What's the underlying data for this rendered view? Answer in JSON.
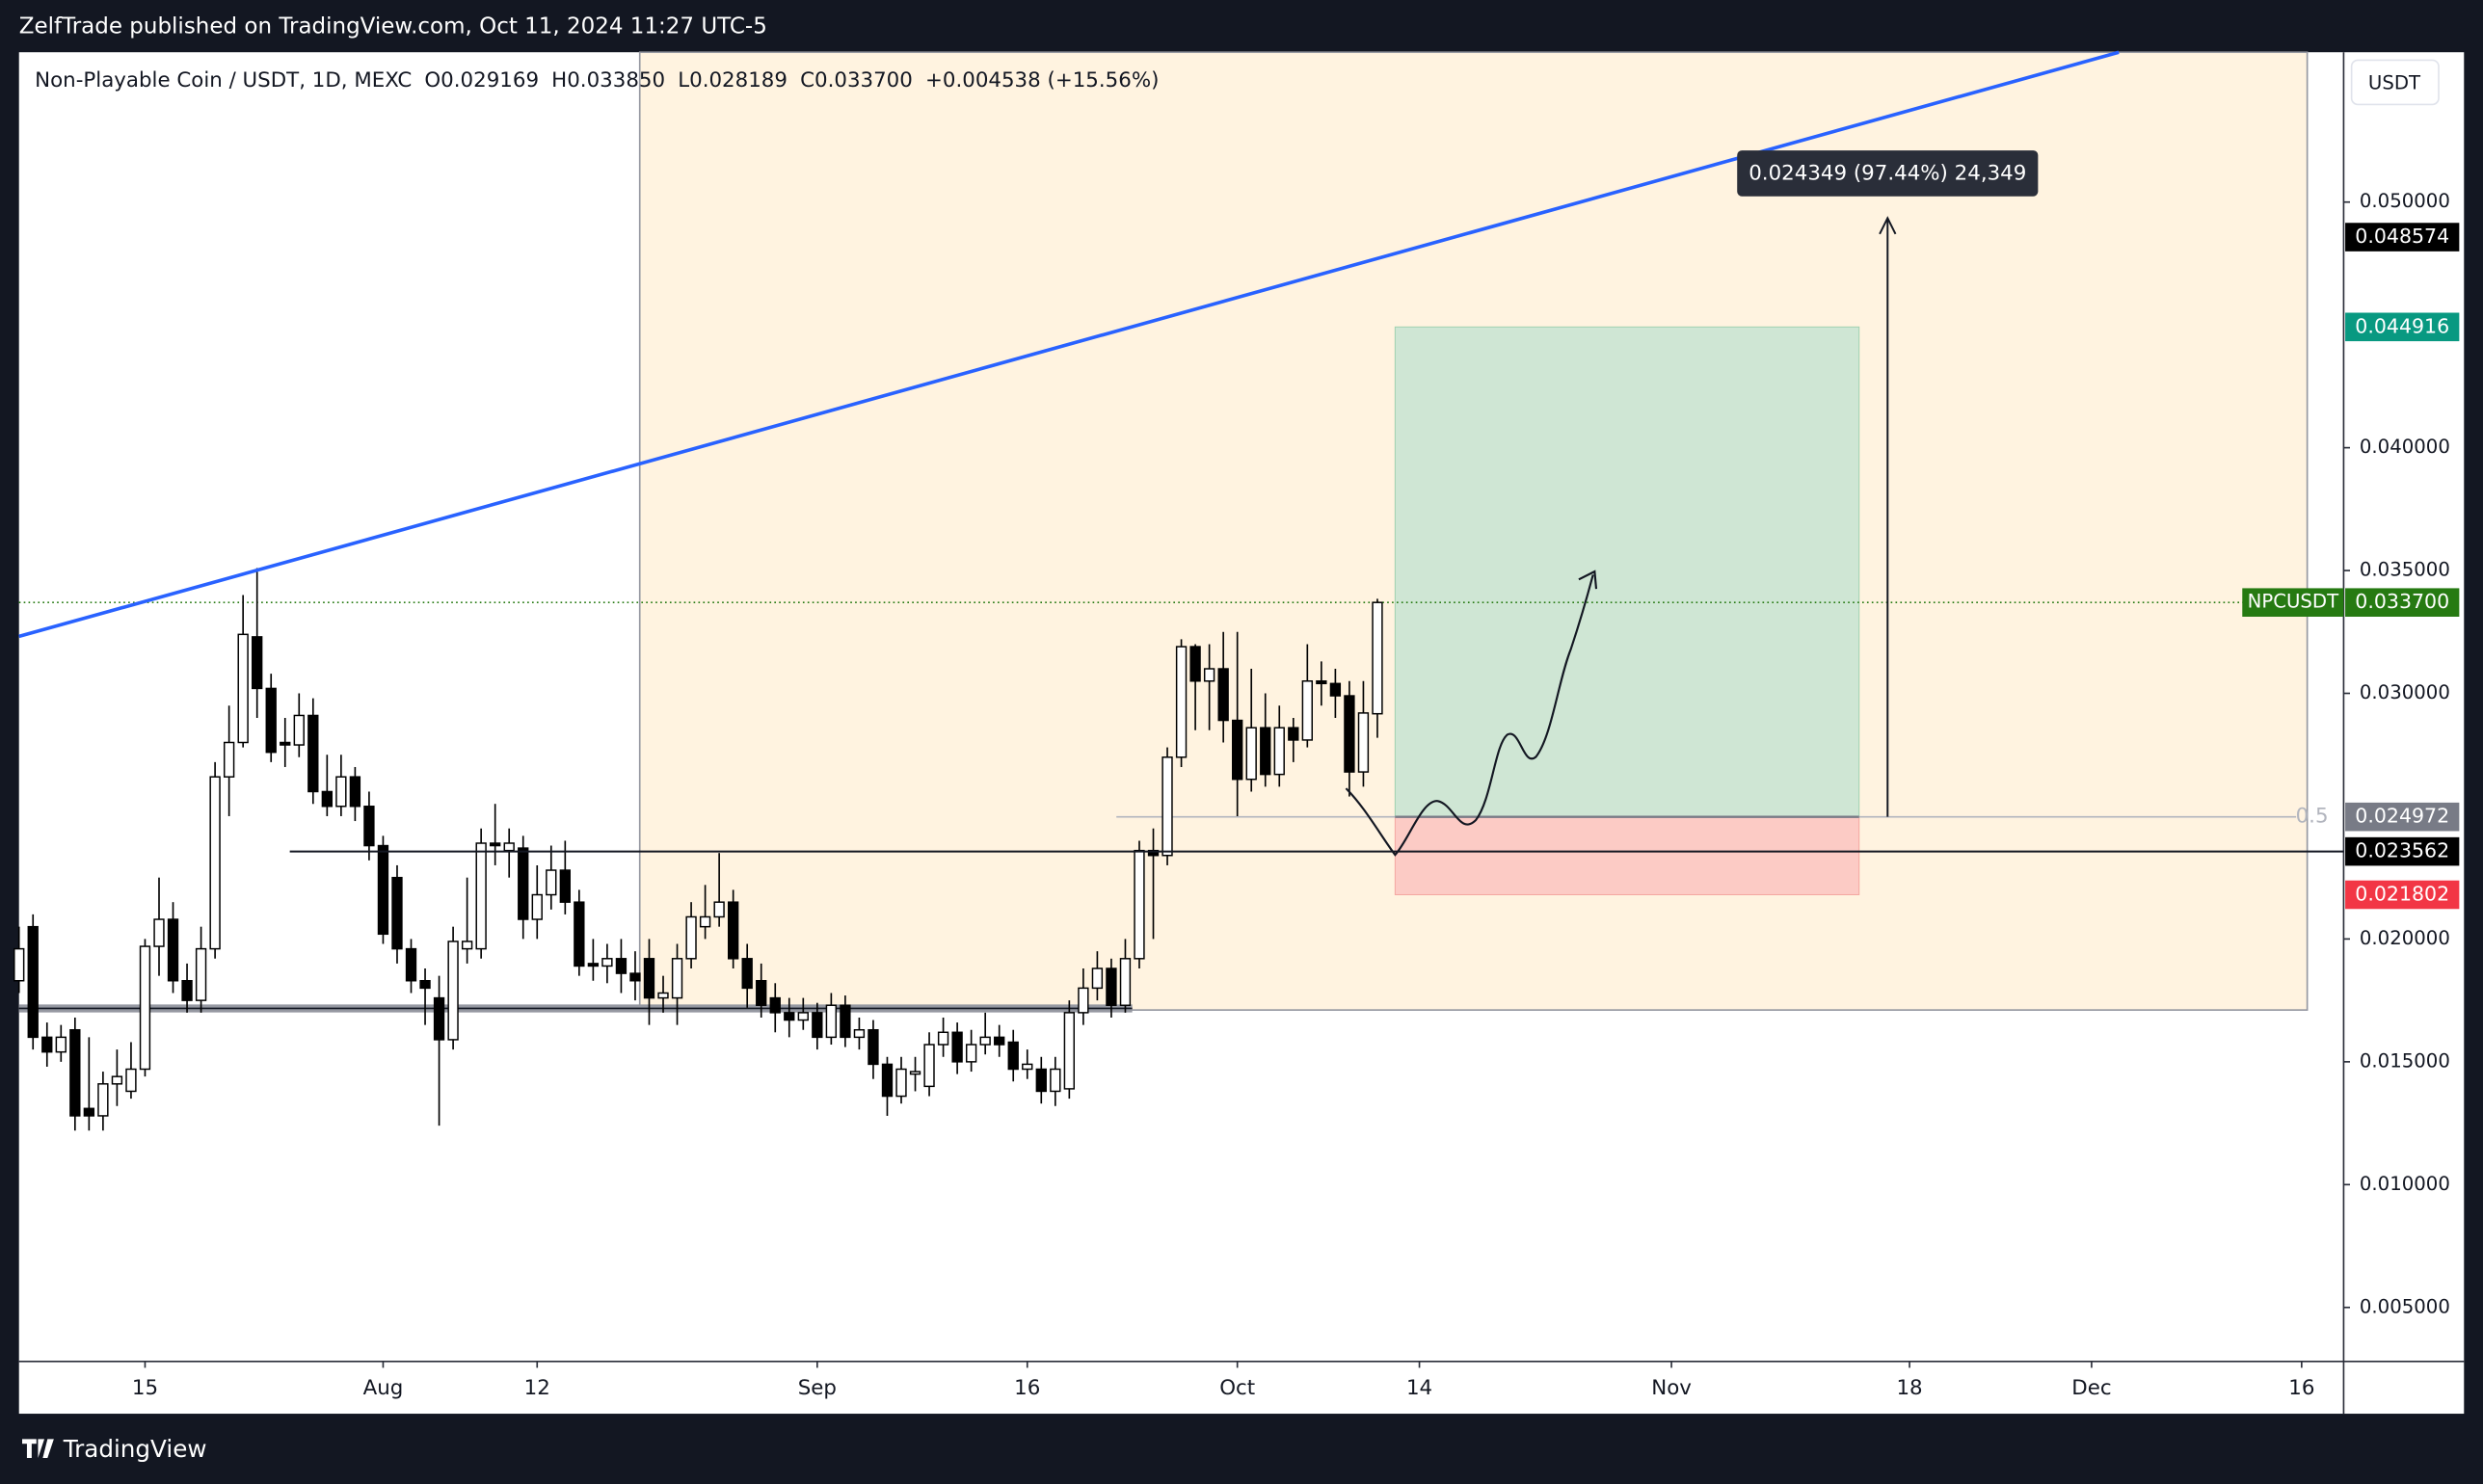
{
  "header": {
    "publisher_line": "ZelfTrade published on TradingView.com, Oct 11, 2024 11:27 UTC-5"
  },
  "chart_data": {
    "type": "candlestick",
    "legend": {
      "symbol": "Non-Playable Coin / USDT, 1D, MEXC",
      "open": "O0.029169",
      "high": "H0.033850",
      "low": "L0.028189",
      "close": "C0.033700",
      "change": "+0.004538 (+15.56%)"
    },
    "currency_button": "USDT",
    "x": [
      "2024-07-06",
      "2024-07-07",
      "2024-07-08",
      "2024-07-09",
      "2024-07-10",
      "2024-07-11",
      "2024-07-12",
      "2024-07-13",
      "2024-07-14",
      "2024-07-15",
      "2024-07-16",
      "2024-07-17",
      "2024-07-18",
      "2024-07-19",
      "2024-07-20",
      "2024-07-21",
      "2024-07-22",
      "2024-07-23",
      "2024-07-24",
      "2024-07-25",
      "2024-07-26",
      "2024-07-27",
      "2024-07-28",
      "2024-07-29",
      "2024-07-30",
      "2024-07-31",
      "2024-08-01",
      "2024-08-02",
      "2024-08-03",
      "2024-08-04",
      "2024-08-05",
      "2024-08-06",
      "2024-08-07",
      "2024-08-08",
      "2024-08-09",
      "2024-08-10",
      "2024-08-11",
      "2024-08-12",
      "2024-08-13",
      "2024-08-14",
      "2024-08-15",
      "2024-08-16",
      "2024-08-17",
      "2024-08-18",
      "2024-08-19",
      "2024-08-20",
      "2024-08-21",
      "2024-08-22",
      "2024-08-23",
      "2024-08-24",
      "2024-08-25",
      "2024-08-26",
      "2024-08-27",
      "2024-08-28",
      "2024-08-29",
      "2024-08-30",
      "2024-08-31",
      "2024-09-01",
      "2024-09-02",
      "2024-09-03",
      "2024-09-04",
      "2024-09-05",
      "2024-09-06",
      "2024-09-07",
      "2024-09-08",
      "2024-09-09",
      "2024-09-10",
      "2024-09-11",
      "2024-09-12",
      "2024-09-13",
      "2024-09-14",
      "2024-09-15",
      "2024-09-16",
      "2024-09-17",
      "2024-09-18",
      "2024-09-19",
      "2024-09-20",
      "2024-09-21",
      "2024-09-22",
      "2024-09-23",
      "2024-09-24",
      "2024-09-25",
      "2024-09-26",
      "2024-09-27",
      "2024-09-28",
      "2024-09-29",
      "2024-09-30",
      "2024-10-01",
      "2024-10-02",
      "2024-10-03",
      "2024-10-04",
      "2024-10-05",
      "2024-10-06",
      "2024-10-07",
      "2024-10-08",
      "2024-10-09",
      "2024-10-10",
      "2024-10-11"
    ],
    "series": [
      {
        "name": "NPCUSDT",
        "color_up": "#ffffff",
        "color_down": "#000000",
        "open": [
          0.0183,
          0.0205,
          0.016,
          0.0154,
          0.0163,
          0.0131,
          0.0128,
          0.0141,
          0.0138,
          0.0147,
          0.0197,
          0.0208,
          0.0183,
          0.0175,
          0.0196,
          0.0266,
          0.028,
          0.0323,
          0.0302,
          0.028,
          0.0279,
          0.0291,
          0.026,
          0.0254,
          0.0266,
          0.0254,
          0.0238,
          0.0225,
          0.0196,
          0.0183,
          0.0176,
          0.0159,
          0.0196,
          0.0196,
          0.0239,
          0.0236,
          0.0237,
          0.0208,
          0.0218,
          0.0228,
          0.0215,
          0.019,
          0.0189,
          0.0192,
          0.0186,
          0.0192,
          0.0176,
          0.0176,
          0.0192,
          0.0205,
          0.0209,
          0.0215,
          0.0192,
          0.0183,
          0.0176,
          0.017,
          0.0167,
          0.017,
          0.016,
          0.0173,
          0.016,
          0.0163,
          0.0149,
          0.0136,
          0.0145,
          0.014,
          0.0157,
          0.0162,
          0.015,
          0.0157,
          0.016,
          0.0158,
          0.0147,
          0.0147,
          0.0138,
          0.0139,
          0.017,
          0.018,
          0.0188,
          0.0173,
          0.0192,
          0.0236,
          0.0234,
          0.0274,
          0.0319,
          0.0305,
          0.031,
          0.0289,
          0.0265,
          0.0286,
          0.0267,
          0.0286,
          0.0281,
          0.0305,
          0.0304,
          0.0299,
          0.0268,
          0.029169
        ],
        "high": [
          0.0205,
          0.021,
          0.0166,
          0.0165,
          0.0168,
          0.016,
          0.0146,
          0.0155,
          0.0158,
          0.02,
          0.0225,
          0.0215,
          0.019,
          0.0205,
          0.0272,
          0.0295,
          0.034,
          0.0351,
          0.0308,
          0.029,
          0.03,
          0.0298,
          0.0275,
          0.0275,
          0.027,
          0.026,
          0.0242,
          0.023,
          0.02,
          0.0188,
          0.0185,
          0.0205,
          0.0225,
          0.0245,
          0.0255,
          0.0245,
          0.0242,
          0.023,
          0.0238,
          0.024,
          0.022,
          0.02,
          0.0198,
          0.02,
          0.0195,
          0.02,
          0.0185,
          0.0198,
          0.0215,
          0.0222,
          0.0235,
          0.022,
          0.0198,
          0.019,
          0.0182,
          0.0176,
          0.0176,
          0.0174,
          0.0178,
          0.0177,
          0.0168,
          0.0167,
          0.0152,
          0.0152,
          0.0152,
          0.0162,
          0.0168,
          0.0166,
          0.0163,
          0.017,
          0.0165,
          0.0163,
          0.0155,
          0.0152,
          0.0152,
          0.0175,
          0.0188,
          0.0195,
          0.0192,
          0.02,
          0.024,
          0.0245,
          0.0278,
          0.0322,
          0.032,
          0.032,
          0.0325,
          0.0325,
          0.031,
          0.03,
          0.0295,
          0.029,
          0.032,
          0.0313,
          0.031,
          0.0305,
          0.0305,
          0.03385
        ],
        "low": [
          0.0178,
          0.0155,
          0.0148,
          0.015,
          0.0122,
          0.0122,
          0.0122,
          0.0132,
          0.0135,
          0.0144,
          0.0185,
          0.0178,
          0.017,
          0.017,
          0.0192,
          0.025,
          0.0278,
          0.029,
          0.0272,
          0.027,
          0.0274,
          0.0255,
          0.025,
          0.025,
          0.0248,
          0.0232,
          0.0198,
          0.019,
          0.0178,
          0.0165,
          0.0124,
          0.0155,
          0.019,
          0.0192,
          0.023,
          0.0225,
          0.02,
          0.02,
          0.0212,
          0.021,
          0.0185,
          0.0183,
          0.0182,
          0.0178,
          0.0175,
          0.0165,
          0.017,
          0.0165,
          0.0188,
          0.02,
          0.0205,
          0.0188,
          0.0172,
          0.0168,
          0.0162,
          0.016,
          0.0163,
          0.0155,
          0.0157,
          0.0156,
          0.0155,
          0.0143,
          0.0128,
          0.0133,
          0.0138,
          0.0136,
          0.0152,
          0.0145,
          0.0146,
          0.0153,
          0.0152,
          0.0142,
          0.0143,
          0.0133,
          0.0132,
          0.0135,
          0.0165,
          0.0175,
          0.0168,
          0.017,
          0.0188,
          0.02,
          0.023,
          0.027,
          0.0285,
          0.0285,
          0.028,
          0.025,
          0.026,
          0.0262,
          0.0262,
          0.0272,
          0.0278,
          0.0295,
          0.029,
          0.0258,
          0.0262,
          0.028189
        ],
        "close": [
          0.0196,
          0.016,
          0.0154,
          0.016,
          0.0128,
          0.0128,
          0.0141,
          0.0144,
          0.0147,
          0.0197,
          0.0208,
          0.0183,
          0.0175,
          0.0196,
          0.0266,
          0.028,
          0.0324,
          0.0302,
          0.0276,
          0.0279,
          0.0291,
          0.026,
          0.0254,
          0.0266,
          0.0254,
          0.0238,
          0.0202,
          0.0196,
          0.0183,
          0.018,
          0.0159,
          0.0199,
          0.0199,
          0.0239,
          0.0238,
          0.0239,
          0.0208,
          0.0218,
          0.0228,
          0.0215,
          0.0189,
          0.0189,
          0.0192,
          0.0186,
          0.0183,
          0.0176,
          0.0178,
          0.0192,
          0.0209,
          0.0209,
          0.0215,
          0.0192,
          0.018,
          0.0173,
          0.017,
          0.0167,
          0.017,
          0.016,
          0.0173,
          0.016,
          0.0163,
          0.0149,
          0.0136,
          0.0147,
          0.0146,
          0.0157,
          0.0162,
          0.015,
          0.0157,
          0.016,
          0.0157,
          0.0147,
          0.0149,
          0.0138,
          0.0147,
          0.017,
          0.018,
          0.0188,
          0.0173,
          0.0192,
          0.0236,
          0.0234,
          0.0274,
          0.0319,
          0.0305,
          0.031,
          0.0289,
          0.0265,
          0.0286,
          0.0267,
          0.0286,
          0.0281,
          0.0305,
          0.0304,
          0.0299,
          0.0268,
          0.0292,
          0.0337
        ]
      }
    ],
    "xlim": [
      "2024-07-06",
      "2024-12-19"
    ],
    "xticks": [
      {
        "value": "2024-07-15",
        "label": "15"
      },
      {
        "value": "2024-08-01",
        "label": "Aug"
      },
      {
        "value": "2024-08-12",
        "label": "12"
      },
      {
        "value": "2024-09-01",
        "label": "Sep"
      },
      {
        "value": "2024-09-16",
        "label": "16"
      },
      {
        "value": "2024-10-01",
        "label": "Oct"
      },
      {
        "value": "2024-10-14",
        "label": "14"
      },
      {
        "value": "2024-11-01",
        "label": "Nov"
      },
      {
        "value": "2024-11-18",
        "label": "18"
      },
      {
        "value": "2024-12-01",
        "label": "Dec"
      },
      {
        "value": "2024-12-16",
        "label": "16"
      }
    ],
    "ylim": [
      0.0028,
      0.0561
    ],
    "yticks": [
      {
        "value": 0.05,
        "label": "0.050000"
      },
      {
        "value": 0.04,
        "label": "0.040000"
      },
      {
        "value": 0.035,
        "label": "0.035000"
      },
      {
        "value": 0.03,
        "label": "0.030000"
      },
      {
        "value": 0.02,
        "label": "0.020000"
      },
      {
        "value": 0.015,
        "label": "0.015000"
      },
      {
        "value": 0.01,
        "label": "0.010000"
      },
      {
        "value": 0.005,
        "label": "0.005000"
      }
    ],
    "price_levels": [
      {
        "value": 0.048574,
        "color": "#000000"
      },
      {
        "value": 0.044916,
        "color": "#089981"
      },
      {
        "value": 0.0337,
        "label": "0.033700",
        "color": "#267a12"
      },
      {
        "value": 0.024972,
        "color": "#787b86"
      },
      {
        "value": 0.023562,
        "color": "#000000"
      },
      {
        "value": 0.021802,
        "color": "#f23645"
      }
    ],
    "fib_label": "0.5",
    "measure_label": "0.024349 (97.44%) 24,349",
    "grid": false
  },
  "footer": {
    "brand": "TradingView"
  }
}
